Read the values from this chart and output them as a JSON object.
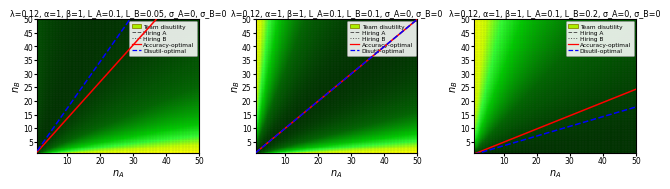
{
  "panels": [
    {
      "title_parts": [
        "λ=0.12, α=1, β=1, L_A=0.1, L_B=0.05, σ_A=0, σ_B=0"
      ],
      "lam": 0.12,
      "alpha": 1.0,
      "beta": 1.0,
      "LA": 0.1,
      "LB": 0.05,
      "accuracy_slope": 1.35,
      "disutil_slope": 1.72
    },
    {
      "title_parts": [
        "λ=0.12, α=1, β=1, L_A=0.1, L_B=0.1, σ_A=0, σ_B=0"
      ],
      "lam": 0.12,
      "alpha": 1.0,
      "beta": 1.0,
      "LA": 0.1,
      "LB": 0.1,
      "accuracy_slope": 1.0,
      "disutil_slope": 1.0
    },
    {
      "title_parts": [
        "λ=0.12, α=1, β=1, L_A=0.1, L_B=0.2, σ_A=0, σ_B=0"
      ],
      "lam": 0.12,
      "alpha": 1.0,
      "beta": 1.0,
      "LA": 0.1,
      "LB": 0.2,
      "accuracy_slope": 0.485,
      "disutil_slope": 0.355
    }
  ],
  "nmax": 50,
  "xlabel": "$n_A$",
  "ylabel": "$n_B$",
  "title_fontsize": 5.8,
  "axis_fontsize": 7.0,
  "tick_fontsize": 5.5,
  "cmap_colors": [
    "#003300",
    "#004d00",
    "#006600",
    "#009900",
    "#00cc00",
    "#33ff33",
    "#ccff00",
    "#ffff00"
  ],
  "legend_patch_color": "#aaee00",
  "legend_patch_edge": "#888800"
}
